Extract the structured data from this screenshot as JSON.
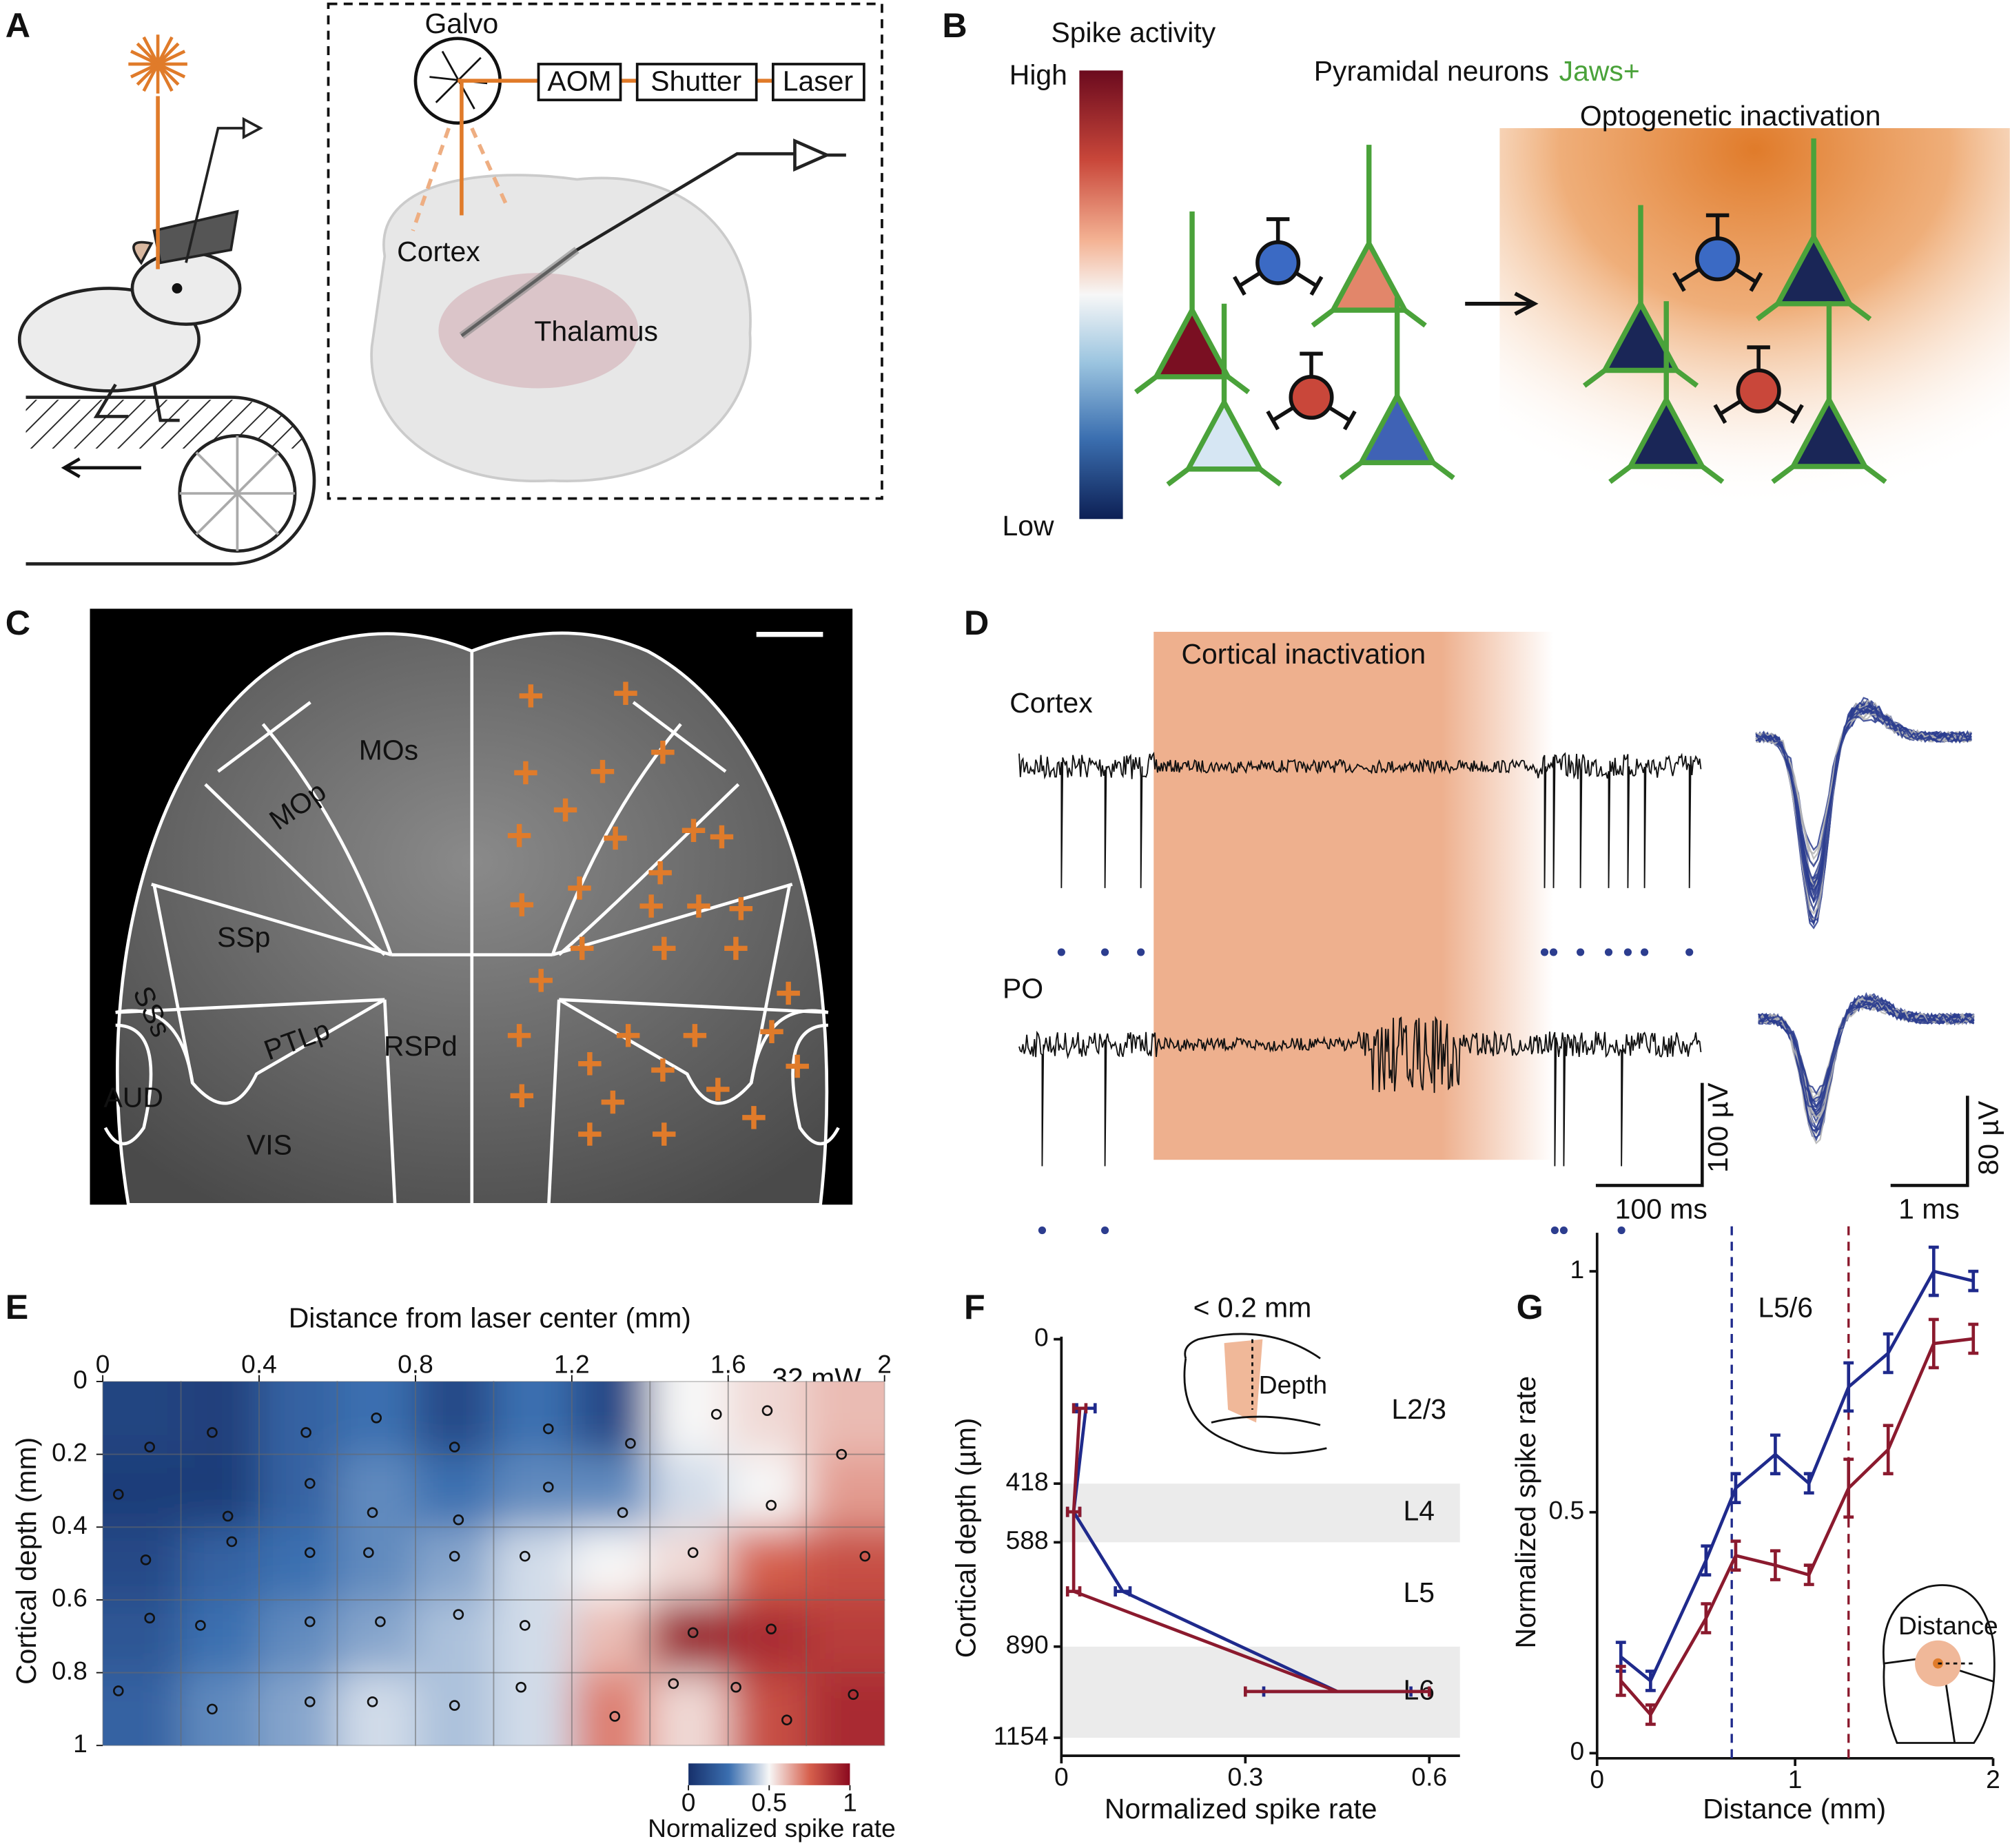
{
  "panel_labels": [
    "A",
    "B",
    "C",
    "D",
    "E",
    "F",
    "G"
  ],
  "panel_a": {
    "galvo": "Galvo",
    "aom": "AOM",
    "shutter": "Shutter",
    "laser": "Laser",
    "cortex": "Cortex",
    "thalamus": "Thalamus"
  },
  "panel_b": {
    "title": "Spike activity",
    "high": "High",
    "low": "Low",
    "neurons": "Pyramidal neurons",
    "jaws": "Jaws+",
    "condition": "Optogenetic inactivation"
  },
  "panel_c": {
    "regions": [
      "MOs",
      "MOp",
      "SSp",
      "SSs",
      "AUD",
      "PTLp",
      "RSPd",
      "VIS"
    ]
  },
  "panel_d": {
    "condition": "Cortical inactivation",
    "traces": [
      "Cortex",
      "PO"
    ],
    "scale_trace": [
      "100 µV",
      "100 ms"
    ],
    "scale_wave": [
      "80 µV",
      "1 ms"
    ]
  },
  "chart_data": [
    {
      "type": "heatmap",
      "x_label": "Distance from laser center (mm)",
      "y_label": "Cortical depth (mm)",
      "annotation": "32 mW",
      "xlim": [
        0,
        2
      ],
      "xticks": [
        0,
        0.4,
        0.8,
        1.2,
        1.6,
        2
      ],
      "ylim": [
        0,
        1
      ],
      "yticks": [
        0,
        0.2,
        0.4,
        0.6,
        0.8,
        1
      ],
      "yreverse": true,
      "grid": true,
      "z": [
        [
          0.08,
          0.06,
          0.2,
          0.25,
          0.1,
          0.25,
          0.1,
          0.5,
          0.55,
          0.6
        ],
        [
          0.05,
          0.05,
          0.2,
          0.3,
          0.25,
          0.3,
          0.3,
          0.45,
          0.5,
          0.65
        ],
        [
          0.1,
          0.2,
          0.25,
          0.3,
          0.35,
          0.45,
          0.5,
          0.55,
          0.75,
          0.8
        ],
        [
          0.15,
          0.25,
          0.3,
          0.35,
          0.4,
          0.45,
          0.6,
          0.95,
          0.9,
          0.85
        ],
        [
          0.2,
          0.3,
          0.35,
          0.45,
          0.4,
          0.45,
          0.7,
          0.55,
          0.8,
          0.9
        ]
      ],
      "colorbar": {
        "label": "Normalized spike rate",
        "lim": [
          0,
          1
        ],
        "ticks": [
          0,
          0.5,
          1
        ]
      },
      "sites": {
        "x": [
          0.28,
          0.12,
          0.04,
          0.32,
          0.52,
          0.7,
          0.9,
          1.14,
          1.35,
          1.57,
          1.7,
          1.89,
          0.53,
          0.69,
          0.91,
          1.14,
          1.33,
          1.71,
          0.11,
          0.33,
          0.53,
          0.68,
          0.9,
          1.08,
          1.51,
          1.95,
          0.12,
          0.25,
          0.53,
          0.71,
          0.91,
          1.08,
          1.51,
          1.71,
          0.04,
          0.28,
          0.53,
          0.69,
          0.9,
          1.07,
          1.31,
          1.46,
          1.62,
          1.75,
          1.92
        ],
        "y": [
          0.14,
          0.18,
          0.31,
          0.37,
          0.14,
          0.1,
          0.18,
          0.13,
          0.17,
          0.09,
          0.08,
          0.2,
          0.28,
          0.36,
          0.38,
          0.29,
          0.36,
          0.34,
          0.49,
          0.44,
          0.47,
          0.47,
          0.48,
          0.48,
          0.47,
          0.48,
          0.65,
          0.67,
          0.66,
          0.66,
          0.64,
          0.67,
          0.69,
          0.68,
          0.85,
          0.9,
          0.88,
          0.88,
          0.89,
          0.84,
          0.92,
          0.83,
          0.84,
          0.93,
          0.86
        ]
      }
    },
    {
      "type": "profile",
      "title": "< 0.2 mm",
      "x_label": "Normalized spike rate",
      "y_label": "Cortical depth (µm)",
      "xlim": [
        0,
        0.65
      ],
      "xticks": [
        0,
        0.3,
        0.6
      ],
      "ylim": [
        0,
        1154
      ],
      "yticks": [
        0,
        418,
        588,
        890,
        1154
      ],
      "yreverse": true,
      "layers": [
        "L2/3",
        "L4",
        "L5",
        "L6"
      ],
      "inset_label": "Depth",
      "y": [
        200,
        500,
        730,
        1020
      ],
      "series": [
        {
          "color": "#1f2a8c",
          "values": [
            0.04,
            0.02,
            0.1,
            0.45
          ],
          "errors": [
            0.015,
            0.01,
            0.012,
            0.12
          ]
        },
        {
          "color": "#8b1a2e",
          "values": [
            0.03,
            0.02,
            0.02,
            0.45
          ],
          "errors": [
            0.01,
            0.01,
            0.01,
            0.15
          ]
        }
      ]
    },
    {
      "type": "line",
      "title": "L5/6",
      "x_label": "Distance (mm)",
      "y_label": "Normalized spike rate",
      "xlim": [
        0,
        2
      ],
      "xticks": [
        0,
        1,
        2
      ],
      "ylim": [
        0,
        1.08
      ],
      "yticks": [
        0,
        0.5,
        1
      ],
      "inset_label": "Distance",
      "x": [
        0.12,
        0.27,
        0.55,
        0.7,
        0.9,
        1.07,
        1.27,
        1.47,
        1.7,
        1.9
      ],
      "series": [
        {
          "color": "#1f2a8c",
          "values": [
            0.2,
            0.15,
            0.4,
            0.55,
            0.62,
            0.56,
            0.76,
            0.83,
            1.0,
            0.98
          ],
          "errors": [
            0.03,
            0.02,
            0.03,
            0.03,
            0.04,
            0.02,
            0.05,
            0.04,
            0.05,
            0.02
          ]
        },
        {
          "color": "#8b1a2e",
          "values": [
            0.15,
            0.08,
            0.28,
            0.41,
            0.39,
            0.37,
            0.55,
            0.63,
            0.85,
            0.86
          ],
          "errors": [
            0.03,
            0.02,
            0.03,
            0.03,
            0.03,
            0.02,
            0.06,
            0.05,
            0.05,
            0.03
          ]
        }
      ],
      "vlines": [
        {
          "value": 0.68,
          "color": "#1f2a8c"
        },
        {
          "value": 1.27,
          "color": "#8b1a2e"
        }
      ]
    }
  ]
}
